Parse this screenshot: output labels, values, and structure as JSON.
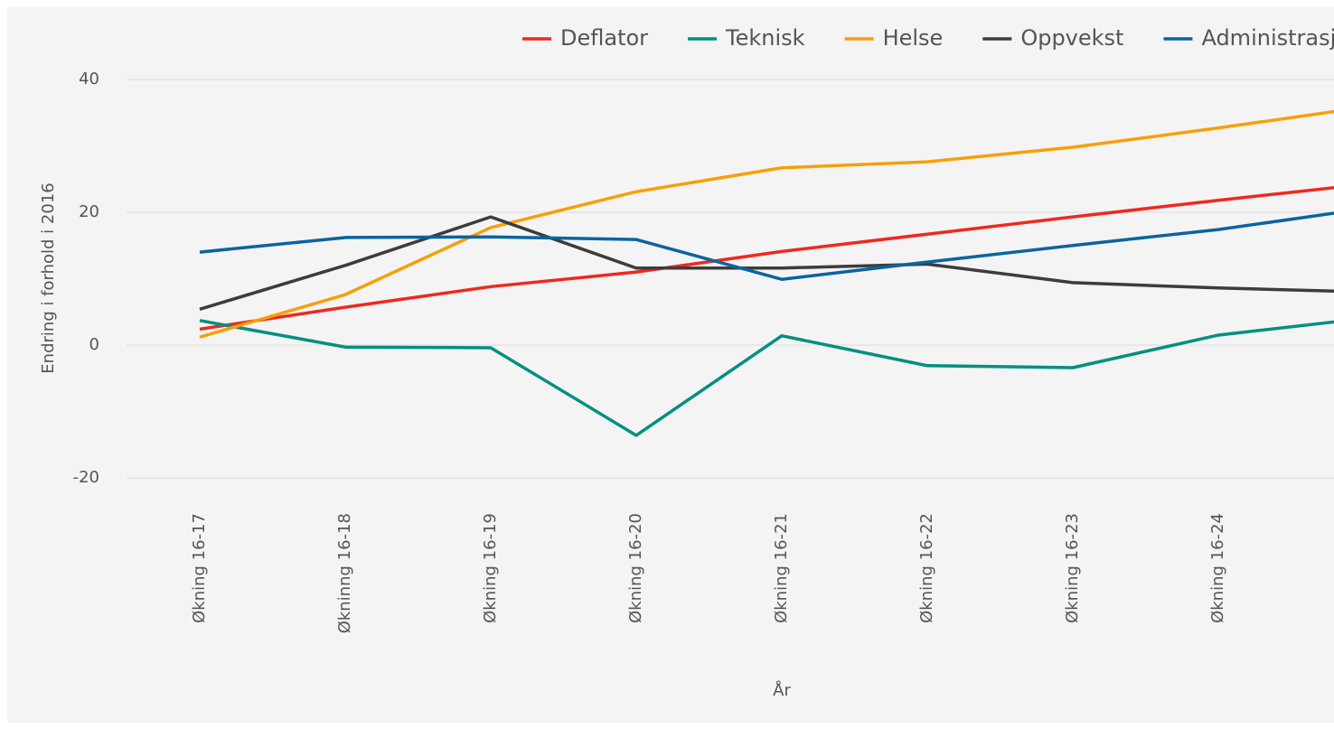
{
  "chart_data": {
    "type": "line",
    "x_label": "År",
    "y_label": "Endring i forhold i 2016",
    "categories": [
      "Økning 16-17",
      "Økninng 16-18",
      "Økning 16-19",
      "Økning 16-20",
      "Økning 16-21",
      "Økning 16-22",
      "Økning 16-23",
      "Økning 16-24",
      null
    ],
    "series": [
      {
        "name": "Deflator",
        "color": "#f0281e",
        "values": [
          2.4,
          5.7,
          8.8,
          11.0,
          14.1,
          16.7,
          19.3,
          21.8,
          24.2
        ]
      },
      {
        "name": "Teknisk",
        "color": "#009080",
        "values": [
          3.7,
          -0.3,
          -0.4,
          -13.6,
          1.4,
          -3.1,
          -3.4,
          1.5,
          4.0
        ]
      },
      {
        "name": "Helse",
        "color": "#f5a00a",
        "values": [
          1.2,
          7.6,
          17.7,
          23.1,
          26.7,
          27.6,
          29.8,
          32.7,
          35.8
        ]
      },
      {
        "name": "Oppvekst",
        "color": "#3c3c3c",
        "values": [
          5.4,
          12.0,
          19.3,
          11.6,
          11.6,
          12.2,
          9.4,
          8.6,
          8.0
        ]
      },
      {
        "name": "Administrasjon",
        "color": "#0a64a0",
        "values": [
          14.0,
          16.2,
          16.3,
          15.9,
          9.9,
          12.5,
          15.0,
          17.4,
          20.5
        ]
      }
    ],
    "ylim": [
      -20,
      40
    ],
    "yticks": [
      -20,
      0,
      20,
      40
    ],
    "grid": true,
    "legend": "top"
  }
}
